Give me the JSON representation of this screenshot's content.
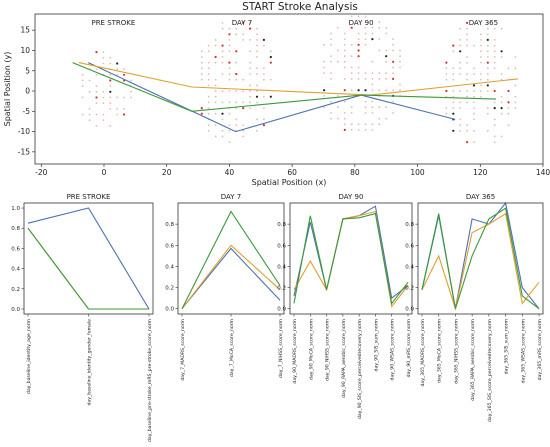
{
  "title": "START Stroke Analysis",
  "colors": {
    "blue": "#4c72b0",
    "orange": "#e0a030",
    "green": "#3a9a3a",
    "dot_faint": "#e8b8b8",
    "dot_dark": "#222222",
    "dot_red": "#d43030"
  },
  "chart_data": [
    {
      "type": "scatter",
      "title": "START Stroke Analysis",
      "xlabel": "Spatial Position (x)",
      "ylabel": "Spatial Position (y)",
      "xlim": [
        -22,
        140
      ],
      "ylim": [
        -18,
        19
      ],
      "xticks": [
        -20,
        0,
        20,
        40,
        60,
        80,
        100,
        120,
        140
      ],
      "yticks": [
        15,
        10,
        5,
        0,
        -5,
        -10,
        -15
      ],
      "grid": true,
      "annotations": [
        {
          "text": "PRE STROKE",
          "x": 3,
          "y": 17
        },
        {
          "text": "DAY 7",
          "x": 44,
          "y": 17
        },
        {
          "text": "DAY 90",
          "x": 82,
          "y": 17
        },
        {
          "text": "DAY 365",
          "x": 121,
          "y": 17
        }
      ],
      "series": [
        {
          "color": "blue",
          "x": [
            -5,
            42,
            82,
            112
          ],
          "y": [
            7,
            -10,
            -1,
            -7
          ]
        },
        {
          "color": "orange",
          "x": [
            -8,
            28,
            85,
            132
          ],
          "y": [
            7,
            1,
            -1,
            3
          ]
        },
        {
          "color": "green",
          "x": [
            -10,
            28,
            82,
            125
          ],
          "y": [
            7,
            -5,
            -1,
            -2
          ]
        }
      ],
      "clusters": [
        {
          "cx": 0,
          "cy": 0,
          "rx": 9,
          "ry": 10
        },
        {
          "cx": 42,
          "cy": 2,
          "rx": 13,
          "ry": 16
        },
        {
          "cx": 82,
          "cy": 4,
          "rx": 14,
          "ry": 15
        },
        {
          "cx": 120,
          "cy": 2,
          "rx": 13,
          "ry": 16
        }
      ]
    },
    {
      "type": "line",
      "title": "PRE STROKE",
      "categories": [
        "day_baseline_identity_age_norm",
        "day_baseline_identity_gender_female",
        "day_baseline_pre-stroke_mRS_pre-stroke_score_norm"
      ],
      "ylim": [
        -0.05,
        1.05
      ],
      "yticks": [
        "0.0",
        "0.2",
        "0.4",
        "0.6",
        "0.8",
        "1.0"
      ],
      "series": [
        {
          "color": "blue",
          "values": [
            0.85,
            1.0,
            0.0
          ]
        },
        {
          "color": "orange",
          "values": [
            0.8,
            0.0,
            0.0
          ]
        },
        {
          "color": "green",
          "values": [
            0.8,
            0.0,
            0.0
          ]
        }
      ]
    },
    {
      "type": "line",
      "title": "DAY 7",
      "categories": [
        "day_7_MADRS_score_norm",
        "day_7_MoCA_score_norm",
        "day_7_NIHSS_score_norm"
      ],
      "ylim": [
        -0.05,
        1.0
      ],
      "yticks": [
        "0.0",
        "0.2",
        "0.4",
        "0.6",
        "0.8"
      ],
      "series": [
        {
          "color": "blue",
          "values": [
            0.0,
            0.57,
            0.08
          ]
        },
        {
          "color": "orange",
          "values": [
            0.0,
            0.6,
            0.18
          ]
        },
        {
          "color": "green",
          "values": [
            0.0,
            0.92,
            0.22
          ]
        }
      ]
    },
    {
      "type": "line",
      "title": "DAY 90",
      "categories": [
        "day_90_MADRS_score_norm",
        "day_90_MoCA_score_norm",
        "day_90_NIHSS_score_norm",
        "day_90_RAPA_aerobic_score_norm",
        "day_90_SIS_score_perceivedrecovery_norm",
        "day_90_SIS_sum_norm",
        "day_90_WSAS_score_norm",
        "day_90_mRS_score_norm"
      ],
      "ylim": [
        -0.05,
        1.0
      ],
      "yticks": [
        "0.0",
        "0.2",
        "0.4",
        "0.6",
        "0.8"
      ],
      "series": [
        {
          "color": "blue",
          "values": [
            0.12,
            0.82,
            0.18,
            0.85,
            0.88,
            0.97,
            0.1,
            0.22
          ]
        },
        {
          "color": "orange",
          "values": [
            0.18,
            0.45,
            0.18,
            0.85,
            0.88,
            0.92,
            0.02,
            0.22
          ]
        },
        {
          "color": "green",
          "values": [
            0.05,
            0.88,
            0.18,
            0.85,
            0.86,
            0.9,
            0.05,
            0.25
          ]
        }
      ]
    },
    {
      "type": "line",
      "title": "DAY 365",
      "categories": [
        "day_365_MADRS_score_norm",
        "day_365_MoCA_score_norm",
        "day_365_NIHSS_score_norm",
        "day_365_RAPA_aerobic_score_norm",
        "day_365_SIS_score_perceivedrecovery_norm",
        "day_365_SIS_sum_norm",
        "day_365_WSAS_score_norm",
        "day_365_mRS_score_norm"
      ],
      "ylim": [
        -0.05,
        1.0
      ],
      "yticks": [
        "0.0",
        "0.2",
        "0.4",
        "0.6",
        "0.8"
      ],
      "series": [
        {
          "color": "blue",
          "values": [
            0.18,
            0.88,
            0.0,
            0.85,
            0.8,
            1.0,
            0.2,
            0.0
          ]
        },
        {
          "color": "orange",
          "values": [
            0.18,
            0.5,
            0.0,
            0.72,
            0.8,
            0.9,
            0.05,
            0.25
          ]
        },
        {
          "color": "green",
          "values": [
            0.18,
            0.9,
            0.0,
            0.5,
            0.85,
            0.95,
            0.12,
            0.0
          ]
        }
      ]
    }
  ]
}
